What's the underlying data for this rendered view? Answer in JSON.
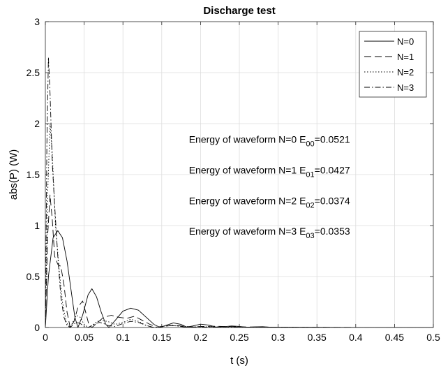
{
  "chart_data": {
    "type": "line",
    "title": "Discharge test",
    "xlabel": "t (s)",
    "ylabel": "abs(P) (W)",
    "xlim": [
      0,
      0.5
    ],
    "ylim": [
      0,
      3
    ],
    "xticks": [
      0,
      0.05,
      0.1,
      0.15,
      0.2,
      0.25,
      0.3,
      0.35,
      0.4,
      0.45,
      0.5
    ],
    "xtick_labels": [
      "0",
      "0.05",
      "0.1",
      "0.15",
      "0.2",
      "0.25",
      "0.3",
      "0.35",
      "0.4",
      "0.45",
      "0.5"
    ],
    "yticks": [
      0,
      0.5,
      1,
      1.5,
      2,
      2.5,
      3
    ],
    "ytick_labels": [
      "0",
      "0.5",
      "1",
      "1.5",
      "2",
      "2.5",
      "3"
    ],
    "grid": true,
    "legend_position": "top-right",
    "series": [
      {
        "name": "N=0",
        "line_style": "solid",
        "x": [
          0,
          0.004,
          0.01,
          0.016,
          0.022,
          0.028,
          0.034,
          0.038,
          0.042,
          0.048,
          0.055,
          0.06,
          0.066,
          0.072,
          0.078,
          0.082,
          0.09,
          0.1,
          0.11,
          0.12,
          0.13,
          0.14,
          0.148,
          0.155,
          0.165,
          0.175,
          0.182,
          0.19,
          0.2,
          0.21,
          0.22,
          0.23,
          0.24,
          0.25,
          0.26,
          0.27,
          0.28,
          0.29,
          0.3,
          0.35,
          0.4,
          0.45,
          0.5
        ],
        "y": [
          0,
          0.5,
          0.88,
          0.95,
          0.88,
          0.65,
          0.32,
          0.1,
          0.0,
          0.12,
          0.32,
          0.38,
          0.3,
          0.15,
          0.03,
          0.0,
          0.07,
          0.16,
          0.19,
          0.17,
          0.1,
          0.03,
          0.0,
          0.02,
          0.045,
          0.03,
          0.005,
          0.015,
          0.033,
          0.025,
          0.005,
          0.008,
          0.015,
          0.01,
          0.002,
          0.006,
          0.008,
          0.003,
          0.002,
          0.002,
          0.001,
          0.001,
          0.0
        ]
      },
      {
        "name": "N=1",
        "line_style": "dashed",
        "x": [
          0,
          0.003,
          0.006,
          0.009,
          0.012,
          0.016,
          0.02,
          0.024,
          0.028,
          0.032,
          0.037,
          0.042,
          0.048,
          0.052,
          0.056,
          0.06,
          0.066,
          0.075,
          0.085,
          0.095,
          0.105,
          0.115,
          0.125,
          0.135,
          0.145,
          0.155,
          0.165,
          0.175,
          0.19,
          0.2,
          0.22,
          0.25,
          0.3,
          0.35,
          0.4,
          0.5
        ],
        "y": [
          0,
          0.9,
          1.3,
          1.05,
          0.7,
          0.62,
          0.6,
          0.42,
          0.15,
          0.0,
          0.06,
          0.2,
          0.26,
          0.15,
          0.03,
          0.0,
          0.04,
          0.1,
          0.12,
          0.1,
          0.09,
          0.11,
          0.07,
          0.03,
          0.0,
          0.012,
          0.022,
          0.015,
          0.004,
          0.01,
          0.012,
          0.006,
          0.003,
          0.002,
          0.001,
          0.0
        ]
      },
      {
        "name": "N=2",
        "line_style": "dotted",
        "x": [
          0,
          0.003,
          0.006,
          0.009,
          0.013,
          0.018,
          0.022,
          0.027,
          0.032,
          0.036,
          0.04,
          0.045,
          0.05,
          0.055,
          0.06,
          0.065,
          0.07,
          0.08,
          0.09,
          0.1,
          0.11,
          0.12,
          0.13,
          0.14,
          0.15,
          0.16,
          0.17,
          0.18,
          0.2,
          0.22,
          0.25,
          0.3,
          0.35,
          0.4,
          0.5
        ],
        "y": [
          0,
          1.3,
          2.0,
          1.7,
          1.0,
          0.55,
          0.25,
          0.05,
          0.0,
          0.06,
          0.12,
          0.1,
          0.03,
          0.0,
          0.02,
          0.05,
          0.07,
          0.06,
          0.03,
          0.05,
          0.08,
          0.06,
          0.02,
          0.0,
          0.01,
          0.02,
          0.015,
          0.005,
          0.008,
          0.006,
          0.004,
          0.002,
          0.001,
          0.001,
          0.0
        ]
      },
      {
        "name": "N=3",
        "line_style": "dash-dot",
        "x": [
          0,
          0.002,
          0.004,
          0.006,
          0.009,
          0.012,
          0.016,
          0.02,
          0.024,
          0.028,
          0.032,
          0.036,
          0.04,
          0.045,
          0.05,
          0.055,
          0.06,
          0.065,
          0.07,
          0.075,
          0.08,
          0.09,
          0.1,
          0.11,
          0.12,
          0.13,
          0.14,
          0.15,
          0.16,
          0.17,
          0.18,
          0.2,
          0.25,
          0.3,
          0.35,
          0.4,
          0.5
        ],
        "y": [
          0,
          1.8,
          2.65,
          2.3,
          1.6,
          1.2,
          0.7,
          0.3,
          0.1,
          0.02,
          0.0,
          0.03,
          0.05,
          0.04,
          0.01,
          0.0,
          0.02,
          0.04,
          0.05,
          0.04,
          0.02,
          0.01,
          0.04,
          0.06,
          0.05,
          0.02,
          0.0,
          0.01,
          0.02,
          0.015,
          0.005,
          0.004,
          0.003,
          0.002,
          0.001,
          0.001,
          0.0
        ]
      }
    ],
    "annotations": [
      {
        "prefix": "Energy of waveform N=0 E",
        "subscript": "00",
        "suffix": "=0.0521",
        "x": 0.185,
        "y": 1.81
      },
      {
        "prefix": "Energy of waveform N=1 E",
        "subscript": "01",
        "suffix": "=0.0427",
        "x": 0.185,
        "y": 1.51
      },
      {
        "prefix": "Energy of waveform N=2 E",
        "subscript": "02",
        "suffix": "=0.0374",
        "x": 0.185,
        "y": 1.21
      },
      {
        "prefix": "Energy of waveform N=3 E",
        "subscript": "03",
        "suffix": "=0.0353",
        "x": 0.185,
        "y": 0.91
      }
    ]
  }
}
